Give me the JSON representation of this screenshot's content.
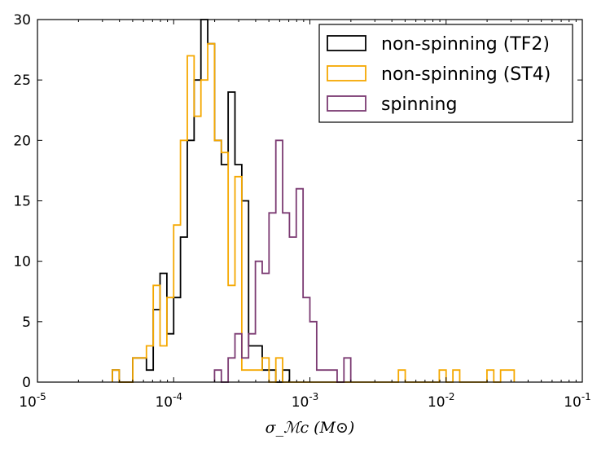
{
  "chart_data": {
    "type": "histogram",
    "title": "",
    "xscale": "log",
    "xlim": [
      1e-05,
      0.1
    ],
    "ylim": [
      0,
      30
    ],
    "xlabel": "σ_ℳc (M⊙)",
    "ylabel": "",
    "x_ticks": [
      {
        "value": 1e-05,
        "base": "10",
        "exp": "-5"
      },
      {
        "value": 0.0001,
        "base": "10",
        "exp": "-4"
      },
      {
        "value": 0.001,
        "base": "10",
        "exp": "-3"
      },
      {
        "value": 0.01,
        "base": "10",
        "exp": "-2"
      },
      {
        "value": 0.1,
        "base": "10",
        "exp": "-1"
      }
    ],
    "y_ticks": [
      {
        "value": 0,
        "label": "0"
      },
      {
        "value": 5,
        "label": "5"
      },
      {
        "value": 10,
        "label": "10"
      },
      {
        "value": 15,
        "label": "15"
      },
      {
        "value": 20,
        "label": "20"
      },
      {
        "value": 25,
        "label": "25"
      },
      {
        "value": 30,
        "label": "30"
      }
    ],
    "grid": false,
    "legend_position": "top-right",
    "bin_width_log10": 0.05,
    "series": [
      {
        "name": "non-spinning (TF2)",
        "color": "#000000",
        "log10_start": -4.45,
        "counts": [
          1,
          0,
          0,
          2,
          2,
          1,
          6,
          9,
          4,
          7,
          12,
          20,
          25,
          30,
          28,
          20,
          18,
          24,
          18,
          15,
          3,
          3,
          1,
          1,
          0,
          1
        ]
      },
      {
        "name": "non-spinning (ST4)",
        "color": "#f5a800",
        "log10_start": -4.45,
        "counts": [
          1,
          0,
          0,
          2,
          2,
          3,
          8,
          3,
          7,
          13,
          20,
          27,
          22,
          25,
          28,
          20,
          19,
          8,
          17,
          1,
          1,
          1,
          2,
          0,
          2,
          0,
          0,
          0,
          0,
          0,
          0,
          0,
          0,
          0,
          0,
          0,
          0,
          0,
          0,
          0,
          0,
          0,
          1,
          0,
          0,
          0,
          0,
          0,
          1,
          0,
          1,
          0,
          0,
          0,
          0,
          1,
          0,
          1,
          1
        ]
      },
      {
        "name": "spinning",
        "color": "#7b3a72",
        "log10_start": -3.7,
        "counts": [
          1,
          0,
          2,
          4,
          2,
          4,
          10,
          9,
          14,
          20,
          14,
          12,
          16,
          7,
          5,
          1,
          1,
          1,
          0,
          2
        ]
      }
    ]
  }
}
